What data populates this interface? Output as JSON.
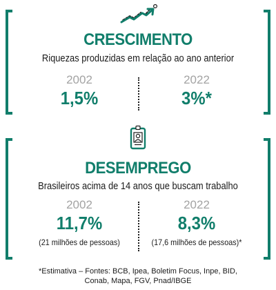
{
  "accent_color": "#117e6b",
  "sections": [
    {
      "icon": "trend-up-arrow-icon",
      "title": "CRESCIMENTO",
      "subtitle": "Riquezas produzidas em relação ao ano anterior",
      "left": {
        "year": "2002",
        "value": "1,5%"
      },
      "right": {
        "year": "2022",
        "value": "3%*"
      }
    },
    {
      "icon": "id-badge-icon",
      "title": "DESEMPREGO",
      "subtitle": "Brasileiros acima de 14 anos que buscam trabalho",
      "left": {
        "year": "2002",
        "value": "11,7%",
        "note": "(21 milhões de pessoas)"
      },
      "right": {
        "year": "2022",
        "value": "8,3%",
        "note": "(17,6 milhões de pessoas)*"
      }
    }
  ],
  "footer": {
    "line1": "*Estimativa – Fontes: BCB, Ipea, Boletim Focus, Inpe, BID,",
    "line2": "Conab, Mapa, FGV, Pnad/IBGE"
  }
}
